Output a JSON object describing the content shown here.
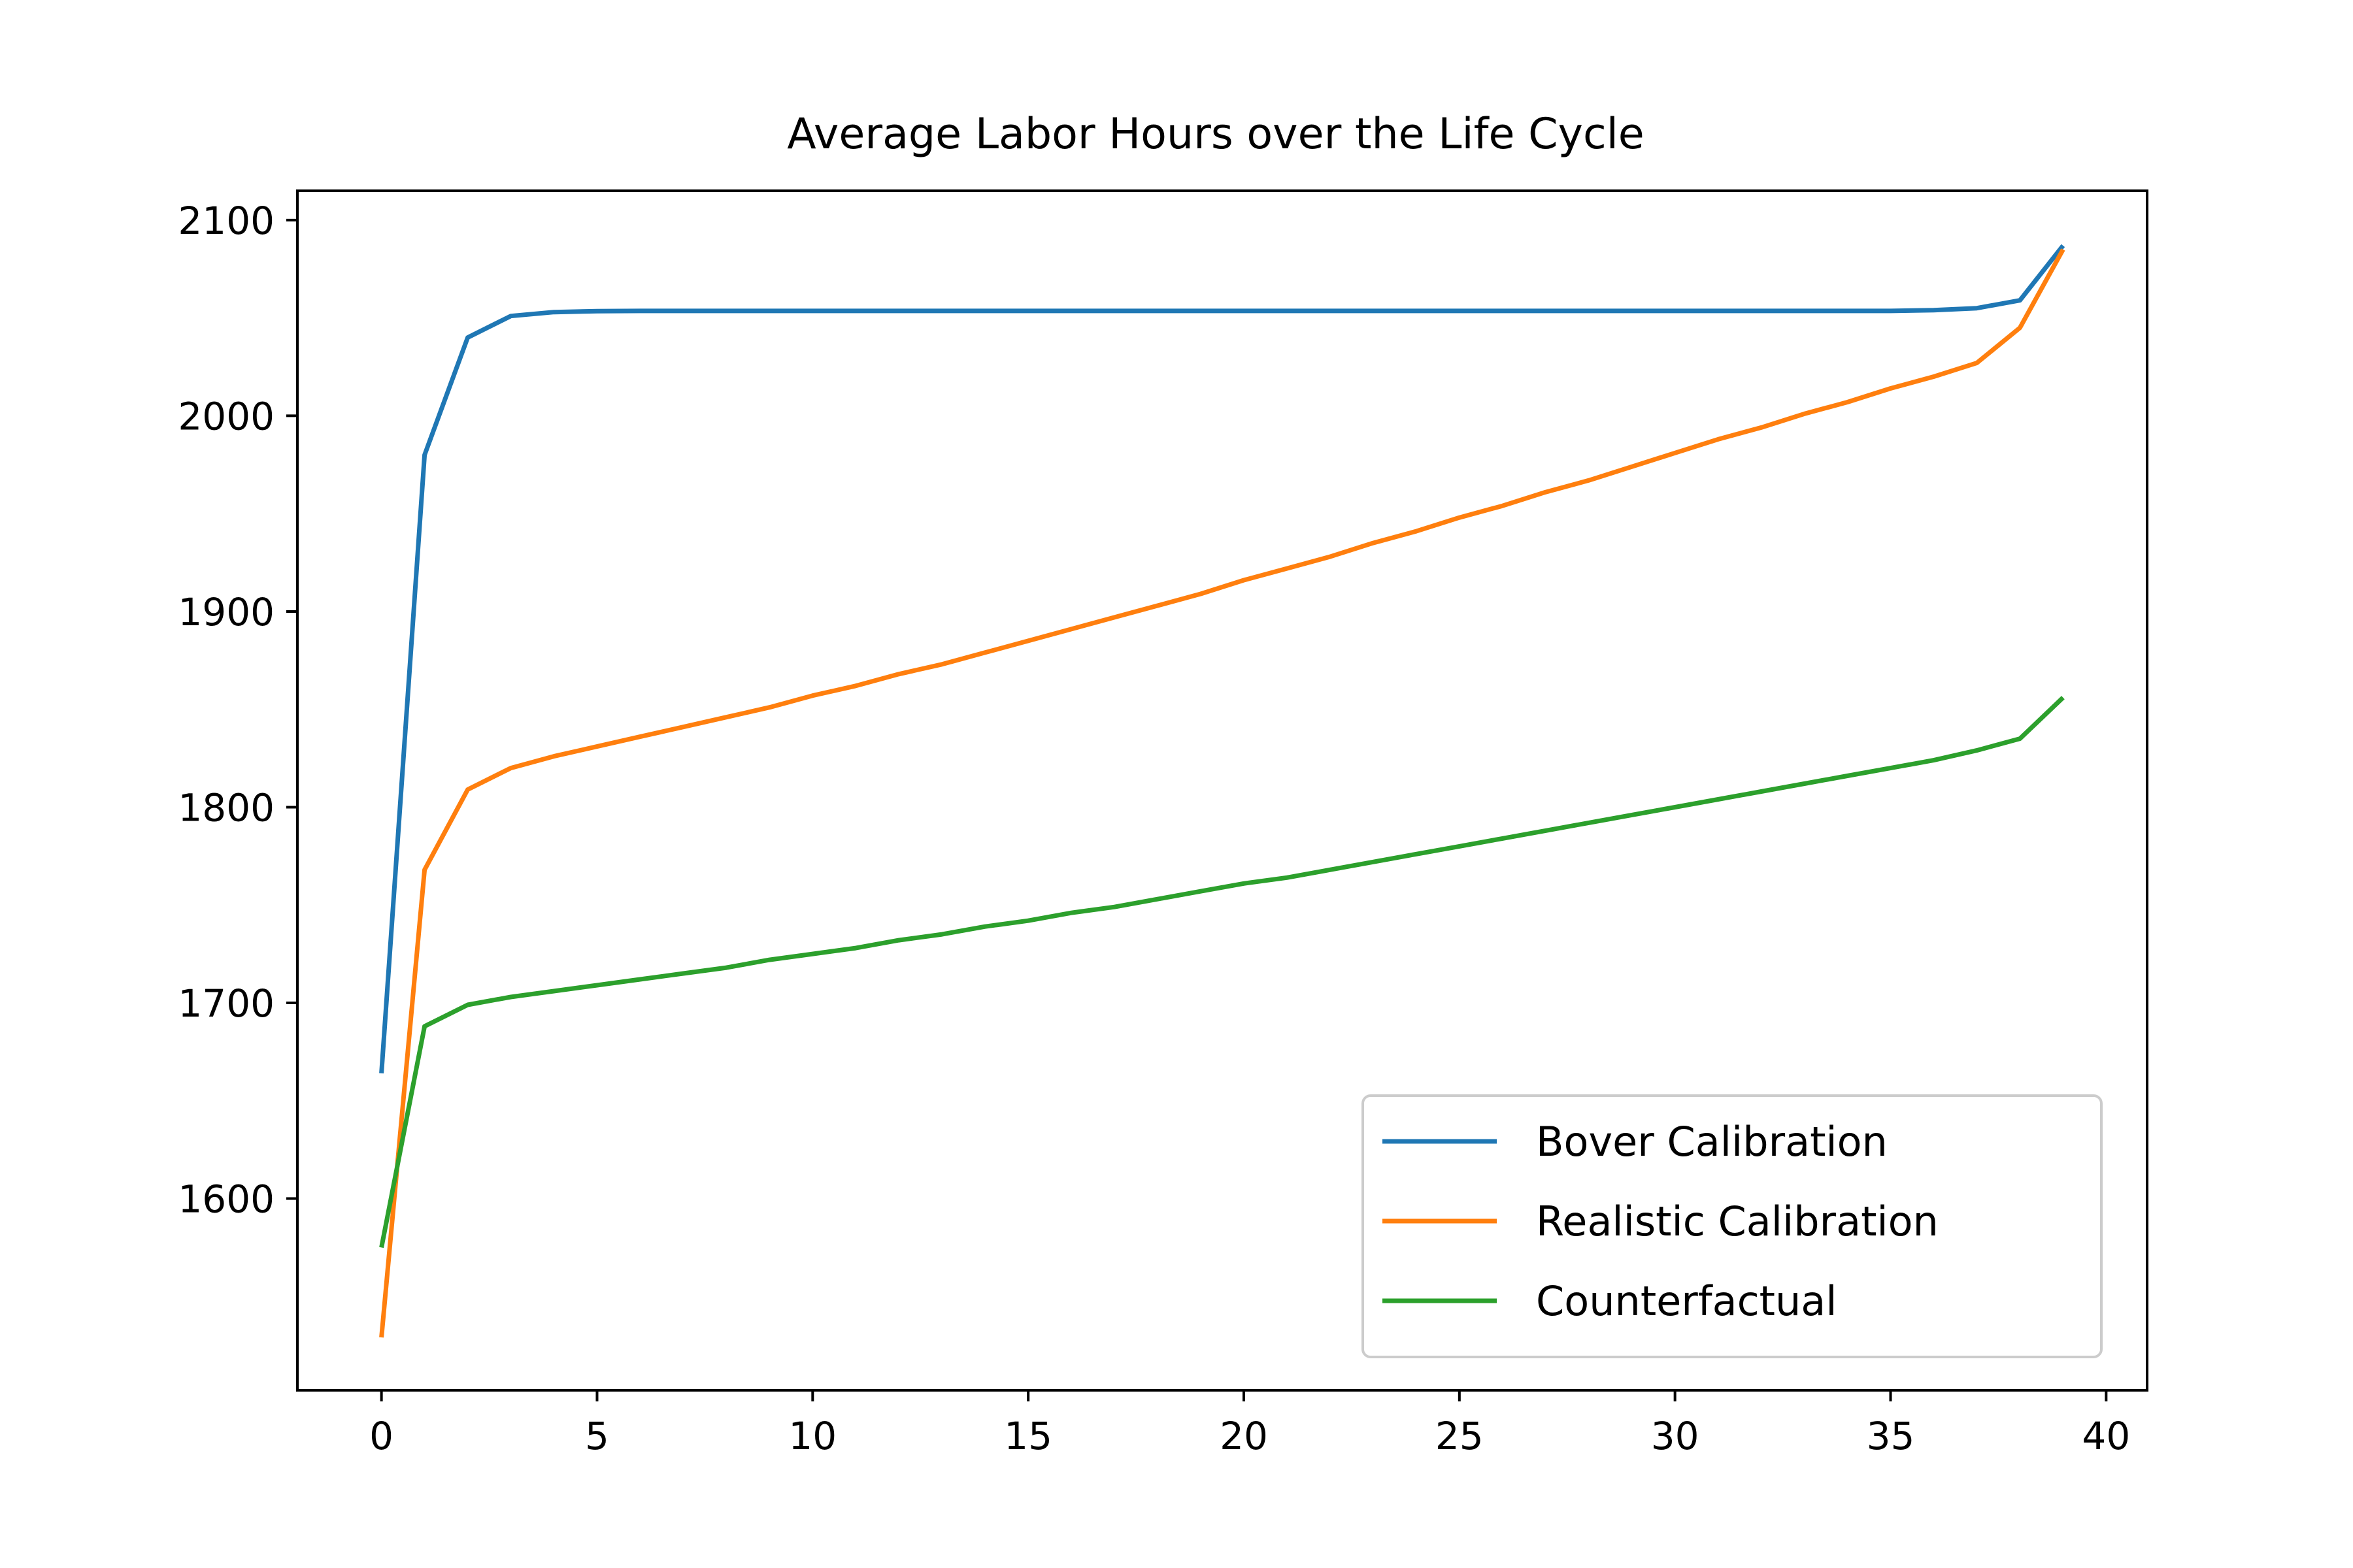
{
  "chart_data": {
    "type": "line",
    "title": "Average Labor Hours over the Life Cycle",
    "xlabel": "",
    "ylabel": "",
    "xlim": [
      -1.95,
      40.95
    ],
    "ylim": [
      1502,
      2115
    ],
    "x_ticks": [
      0,
      5,
      10,
      15,
      20,
      25,
      30,
      35,
      40
    ],
    "y_ticks": [
      1600,
      1700,
      1800,
      1900,
      2000,
      2100
    ],
    "grid": false,
    "legend_position": "lower-right",
    "x": [
      0,
      1,
      2,
      3,
      4,
      5,
      6,
      7,
      8,
      9,
      10,
      11,
      12,
      13,
      14,
      15,
      16,
      17,
      18,
      19,
      20,
      21,
      22,
      23,
      24,
      25,
      26,
      27,
      28,
      29,
      30,
      31,
      32,
      33,
      34,
      35,
      36,
      37,
      38,
      39
    ],
    "series": [
      {
        "name": "Bover Calibration",
        "color": "#1f77b4",
        "values": [
          1664,
          1980,
          2040,
          2051,
          2053,
          2053.5,
          2053.6,
          2053.6,
          2053.6,
          2053.6,
          2053.6,
          2053.6,
          2053.6,
          2053.6,
          2053.6,
          2053.6,
          2053.6,
          2053.6,
          2053.6,
          2053.6,
          2053.6,
          2053.6,
          2053.6,
          2053.6,
          2053.6,
          2053.6,
          2053.6,
          2053.6,
          2053.6,
          2053.6,
          2053.6,
          2053.6,
          2053.6,
          2053.6,
          2053.6,
          2053.6,
          2054,
          2055,
          2059,
          2087
        ]
      },
      {
        "name": "Realistic Calibration",
        "color": "#ff7f0e",
        "values": [
          1529,
          1768,
          1809,
          1820,
          1826,
          1831,
          1836,
          1841,
          1846,
          1851,
          1857,
          1862,
          1868,
          1873,
          1879,
          1885,
          1891,
          1897,
          1903,
          1909,
          1916,
          1922,
          1928,
          1935,
          1941,
          1948,
          1954,
          1961,
          1967,
          1974,
          1981,
          1988,
          1994,
          2001,
          2007,
          2014,
          2020,
          2027,
          2045,
          2085
        ]
      },
      {
        "name": "Counterfactual",
        "color": "#2ca02c",
        "values": [
          1575,
          1688,
          1699,
          1703,
          1706,
          1709,
          1712,
          1715,
          1718,
          1722,
          1725,
          1728,
          1732,
          1735,
          1739,
          1742,
          1746,
          1749,
          1753,
          1757,
          1761,
          1764,
          1768,
          1772,
          1776,
          1780,
          1784,
          1788,
          1792,
          1796,
          1800,
          1804,
          1808,
          1812,
          1816,
          1820,
          1824,
          1829,
          1835,
          1856
        ]
      }
    ]
  }
}
